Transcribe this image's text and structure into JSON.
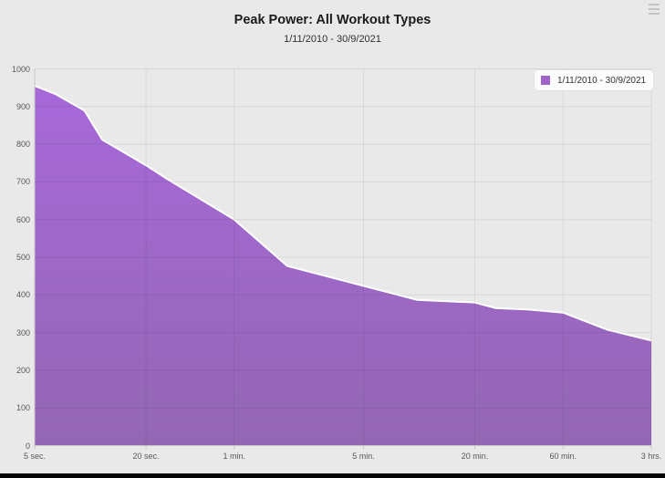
{
  "header": {
    "title": "Peak Power: All Workout Types",
    "subtitle": "1/11/2010 - 30/9/2021"
  },
  "legend": {
    "label": "1/11/2010 - 30/9/2021",
    "swatch_color": "#9e64c9",
    "position": "top-right"
  },
  "colors": {
    "background": "#e9e9ea",
    "area_top": "#a768d9",
    "area_bottom": "#9467b4",
    "series_line": "#ffffff",
    "grid": "rgba(0,0,0,0.075)",
    "axis": "#c7c7c9",
    "tick_text": "#58585a"
  },
  "chart_data": {
    "type": "area",
    "title": "Peak Power: All Workout Types",
    "subtitle": "1/11/2010 - 30/9/2021",
    "x_scale": "logarithmic-time",
    "x_range_seconds": [
      5,
      10800
    ],
    "x_ticks": [
      {
        "label": "5 sec.",
        "seconds": 5
      },
      {
        "label": "20 sec.",
        "seconds": 20
      },
      {
        "label": "1 min.",
        "seconds": 60
      },
      {
        "label": "5 min.",
        "seconds": 300
      },
      {
        "label": "20 min.",
        "seconds": 1200
      },
      {
        "label": "60 min.",
        "seconds": 3600
      },
      {
        "label": "3 hrs.",
        "seconds": 10800
      }
    ],
    "y_ticks": [
      0,
      100,
      200,
      300,
      400,
      500,
      600,
      700,
      800,
      900,
      1000
    ],
    "ylim": [
      0,
      1000
    ],
    "grid": true,
    "legend_position": "top-right",
    "series": [
      {
        "name": "1/11/2010 - 30/9/2021",
        "points_seconds_watts": [
          [
            5,
            955
          ],
          [
            6.5,
            933
          ],
          [
            9.3,
            889
          ],
          [
            11.6,
            812
          ],
          [
            20,
            744
          ],
          [
            26,
            708
          ],
          [
            60,
            600
          ],
          [
            116,
            477
          ],
          [
            300,
            424
          ],
          [
            583,
            387
          ],
          [
            1200,
            380
          ],
          [
            1560,
            365
          ],
          [
            2360,
            361
          ],
          [
            3600,
            353
          ],
          [
            6300,
            307
          ],
          [
            10800,
            279
          ]
        ]
      }
    ]
  }
}
